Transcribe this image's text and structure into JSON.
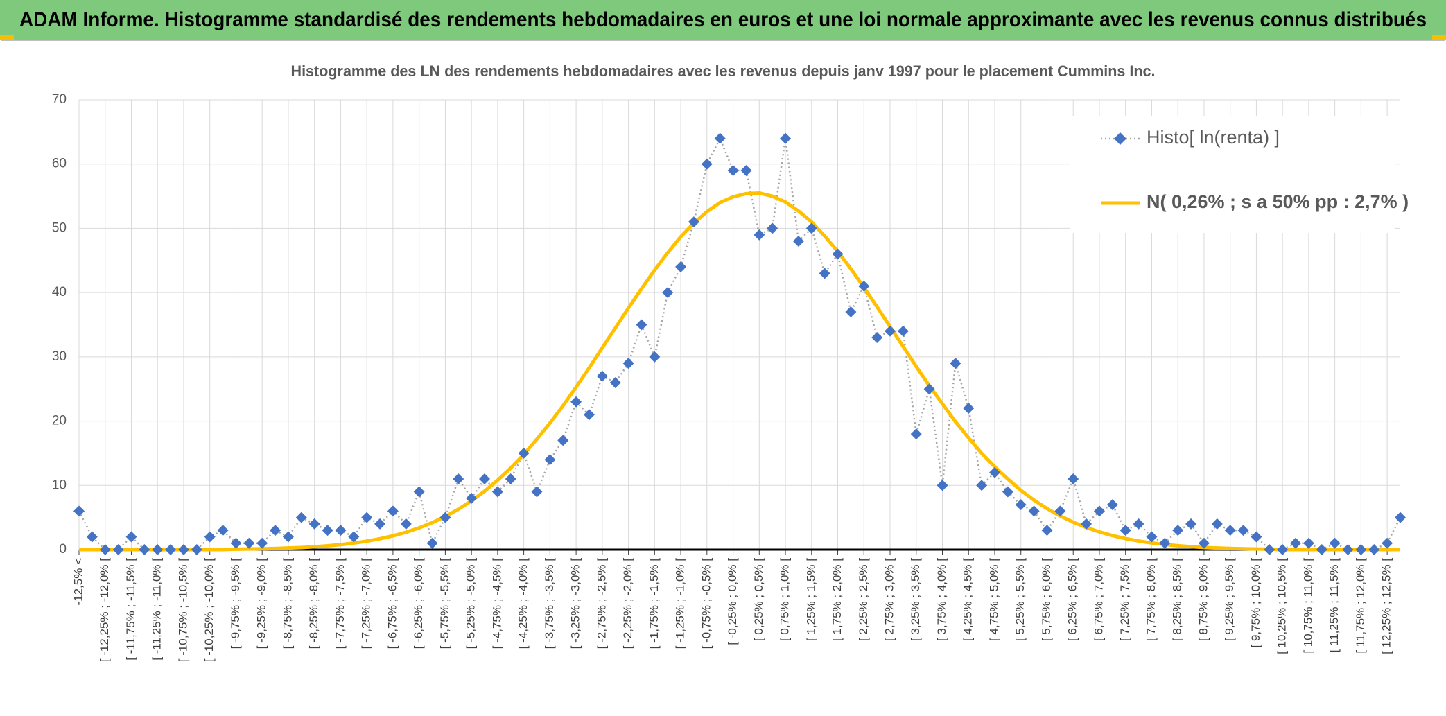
{
  "header": {
    "title": "ADAM Informe. Histogramme standardisé des rendements hebdomadaires en euros et une loi normale approximante avec les revenus connus distribués"
  },
  "chart_data": {
    "type": "line",
    "title": "Histogramme des LN des rendements hebdomadaires avec les revenus depuis janv 1997 pour le placement Cummins Inc.",
    "categories": [
      "-12,5% <",
      null,
      "[ -12,25% ; -12,0% [",
      null,
      "[ -11,75% ; -11,5% [",
      null,
      "[ -11,25% ; -11,0% [",
      null,
      "[ -10,75% ; -10,5% [",
      null,
      "[ -10,25% ; -10,0% [",
      null,
      "[ -9,75% ; -9,5% [",
      null,
      "[ -9,25% ; -9,0% [",
      null,
      "[ -8,75% ; -8,5% [",
      null,
      "[ -8,25% ; -8,0% [",
      null,
      "[ -7,75% ; -7,5% [",
      null,
      "[ -7,25% ; -7,0% [",
      null,
      "[ -6,75% ; -6,5% [",
      null,
      "[ -6,25% ; -6,0% [",
      null,
      "[ -5,75% ; -5,5% [",
      null,
      "[ -5,25% ; -5,0% [",
      null,
      "[ -4,75% ; -4,5% [",
      null,
      "[ -4,25% ; -4,0% [",
      null,
      "[ -3,75% ; -3,5% [",
      null,
      "[ -3,25% ; -3,0% [",
      null,
      "[ -2,75% ; -2,5% [",
      null,
      "[ -2,25% ; -2,0% [",
      null,
      "[ -1,75% ; -1,5% [",
      null,
      "[ -1,25% ; -1,0% [",
      null,
      "[ -0,75% ; -0,5% [",
      null,
      "[ -0,25% ; 0,0% [",
      null,
      "[ 0,25% ; 0,5% [",
      null,
      "[ 0,75% ; 1,0% [",
      null,
      "[ 1,25% ; 1,5% [",
      null,
      "[ 1,75% ; 2,0% [",
      null,
      "[ 2,25% ; 2,5% [",
      null,
      "[ 2,75% ; 3,0% [",
      null,
      "[ 3,25% ; 3,5% [",
      null,
      "[ 3,75% ; 4,0% [",
      null,
      "[ 4,25% ; 4,5% [",
      null,
      "[ 4,75% ; 5,0% [",
      null,
      "[ 5,25% ; 5,5% [",
      null,
      "[ 5,75% ; 6,0% [",
      null,
      "[ 6,25% ; 6,5% [",
      null,
      "[ 6,75% ; 7,0% [",
      null,
      "[ 7,25% ; 7,5% [",
      null,
      "[ 7,75% ; 8,0% [",
      null,
      "[ 8,25% ; 8,5% [",
      null,
      "[ 8,75% ; 9,0% [",
      null,
      "[ 9,25% ; 9,5% [",
      null,
      "[ 9,75% ; 10,0% [",
      null,
      "[ 10,25% ; 10,5% [",
      null,
      "[ 10,75% ; 11,0% [",
      null,
      "[ 11,25% ; 11,5% [",
      null,
      "[ 11,75% ; 12,0% [",
      null,
      "[ 12,25% ; 12,5% [",
      null
    ],
    "series": [
      {
        "name": "Histo[ ln(renta) ]",
        "color": "#4472c4",
        "values": [
          6,
          2,
          0,
          0,
          2,
          0,
          0,
          0,
          0,
          0,
          2,
          3,
          1,
          1,
          1,
          3,
          2,
          5,
          4,
          3,
          3,
          2,
          5,
          4,
          6,
          4,
          9,
          1,
          5,
          11,
          8,
          11,
          9,
          11,
          15,
          9,
          14,
          17,
          23,
          21,
          27,
          26,
          29,
          35,
          30,
          40,
          44,
          51,
          60,
          64,
          59,
          59,
          49,
          50,
          64,
          48,
          50,
          43,
          46,
          37,
          41,
          33,
          34,
          34,
          18,
          25,
          10,
          29,
          22,
          10,
          12,
          9,
          7,
          6,
          3,
          6,
          11,
          4,
          6,
          7,
          3,
          4,
          2,
          1,
          3,
          4,
          1,
          4,
          3,
          3,
          2,
          0,
          0,
          1,
          1,
          0,
          1,
          0,
          0,
          0,
          1,
          5
        ]
      },
      {
        "name": "N( 0,26% ; s a 50% pp : 2,7% )",
        "color": "#ffc000",
        "values": [
          0,
          0,
          0,
          0,
          0,
          0,
          0,
          0,
          0,
          0,
          0,
          0,
          0.07,
          0.09,
          0.13,
          0.18,
          0.25,
          0.33,
          0.45,
          0.59,
          0.78,
          1.02,
          1.32,
          1.69,
          2.15,
          2.71,
          3.39,
          4.2,
          5.16,
          6.29,
          7.59,
          9.09,
          10.8,
          12.7,
          14.8,
          17.2,
          19.7,
          22.4,
          25.3,
          28.3,
          31.4,
          34.5,
          37.6,
          40.6,
          43.5,
          46.2,
          48.7,
          50.8,
          52.6,
          54.0,
          54.9,
          55.4,
          55.5,
          55.0,
          54.1,
          52.7,
          51.0,
          48.8,
          46.4,
          43.7,
          40.8,
          37.8,
          34.7,
          31.6,
          28.5,
          25.5,
          22.7,
          19.9,
          17.4,
          15.0,
          12.9,
          11.0,
          9.22,
          7.71,
          6.39,
          5.24,
          4.27,
          3.45,
          2.76,
          2.19,
          1.72,
          1.34,
          1.04,
          0.8,
          0.61,
          0.46,
          0.34,
          0.25,
          0.19,
          0.14,
          0.1,
          0.07,
          0,
          0,
          0,
          0,
          0,
          0,
          0,
          0,
          0,
          0
        ]
      }
    ],
    "ylim": [
      0,
      70
    ],
    "yticks": [
      0,
      10,
      20,
      30,
      40,
      50,
      60,
      70
    ],
    "grid": true,
    "legend": "upper right"
  }
}
